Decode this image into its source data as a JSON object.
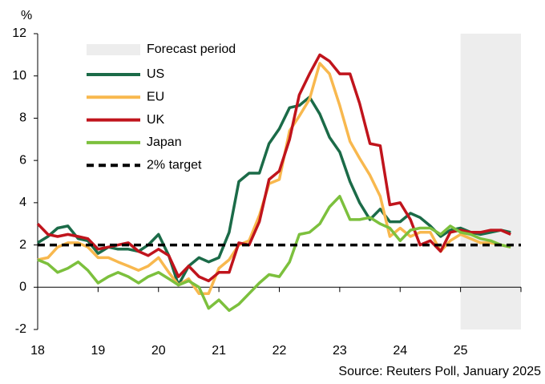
{
  "chart_data": {
    "type": "line",
    "y_unit_label": "%",
    "source": "Source: Reuters Poll, January 2025",
    "x": [
      18,
      18.17,
      18.33,
      18.5,
      18.67,
      18.83,
      19,
      19.17,
      19.33,
      19.5,
      19.67,
      19.83,
      20,
      20.17,
      20.33,
      20.5,
      20.67,
      20.83,
      21,
      21.17,
      21.33,
      21.5,
      21.67,
      21.83,
      22,
      22.17,
      22.33,
      22.5,
      22.67,
      22.83,
      23,
      23.17,
      23.33,
      23.5,
      23.67,
      23.83,
      24,
      24.17,
      24.33,
      24.5,
      24.67,
      24.83,
      25,
      25.17,
      25.33,
      25.5,
      25.67,
      25.83
    ],
    "series": [
      {
        "name": "US",
        "color": "#1b6b48",
        "values": [
          2.1,
          2.4,
          2.8,
          2.9,
          2.3,
          2.2,
          1.6,
          1.9,
          1.8,
          1.8,
          1.7,
          2.0,
          2.5,
          1.5,
          0.1,
          1.0,
          1.4,
          1.2,
          1.4,
          2.6,
          5.0,
          5.4,
          5.4,
          6.8,
          7.5,
          8.5,
          8.6,
          9.0,
          8.2,
          7.1,
          6.4,
          5.0,
          4.0,
          3.2,
          3.7,
          3.1,
          3.1,
          3.5,
          3.3,
          2.9,
          2.4,
          2.7,
          2.8,
          2.6,
          2.5,
          2.6,
          2.7,
          2.6
        ]
      },
      {
        "name": "EU",
        "color": "#f8b84e",
        "values": [
          1.3,
          1.4,
          1.9,
          2.1,
          2.1,
          1.9,
          1.4,
          1.4,
          1.2,
          1.0,
          0.8,
          1.0,
          1.4,
          0.7,
          0.1,
          0.4,
          -0.3,
          -0.3,
          0.9,
          1.3,
          2.0,
          2.2,
          3.4,
          4.9,
          5.1,
          7.4,
          8.1,
          8.9,
          10.6,
          10.1,
          8.6,
          6.9,
          6.1,
          5.3,
          4.3,
          2.4,
          2.8,
          2.4,
          2.6,
          2.6,
          1.7,
          2.2,
          2.5,
          2.3,
          2.1,
          2.1,
          2.0,
          1.9
        ]
      },
      {
        "name": "UK",
        "color": "#c0141c",
        "values": [
          3.0,
          2.5,
          2.4,
          2.5,
          2.4,
          2.3,
          1.8,
          1.9,
          2.0,
          2.1,
          1.7,
          1.5,
          1.8,
          1.5,
          0.5,
          1.0,
          0.5,
          0.3,
          0.7,
          0.7,
          2.1,
          2.0,
          3.1,
          5.1,
          5.5,
          7.0,
          9.1,
          10.1,
          11.0,
          10.7,
          10.1,
          10.1,
          8.7,
          6.8,
          6.7,
          3.9,
          4.0,
          3.2,
          2.0,
          2.2,
          1.7,
          2.6,
          2.7,
          2.6,
          2.6,
          2.7,
          2.7,
          2.5
        ]
      },
      {
        "name": "Japan",
        "color": "#7cc03d",
        "values": [
          1.3,
          1.1,
          0.7,
          0.9,
          1.2,
          0.8,
          0.2,
          0.5,
          0.7,
          0.5,
          0.2,
          0.5,
          0.7,
          0.4,
          0.1,
          0.3,
          0.0,
          -1.0,
          -0.6,
          -1.1,
          -0.8,
          -0.3,
          0.2,
          0.6,
          0.5,
          1.2,
          2.5,
          2.6,
          3.0,
          3.8,
          4.3,
          3.2,
          3.2,
          3.3,
          3.0,
          2.8,
          2.2,
          2.7,
          2.8,
          2.8,
          2.5,
          2.9,
          2.6,
          2.5,
          2.3,
          2.2,
          2.0,
          1.9
        ]
      }
    ],
    "target": {
      "name": "2% target",
      "value": 2,
      "color": "#000000"
    },
    "forecast": {
      "name": "Forecast period",
      "xlim": [
        25,
        26
      ],
      "color": "#ededed"
    },
    "xlim": [
      18,
      26
    ],
    "xticks": [
      18,
      19,
      20,
      21,
      22,
      23,
      24,
      25
    ],
    "ylim": [
      -2,
      12
    ],
    "yticks": [
      -2,
      0,
      2,
      4,
      6,
      8,
      10,
      12
    ],
    "grid": false
  }
}
